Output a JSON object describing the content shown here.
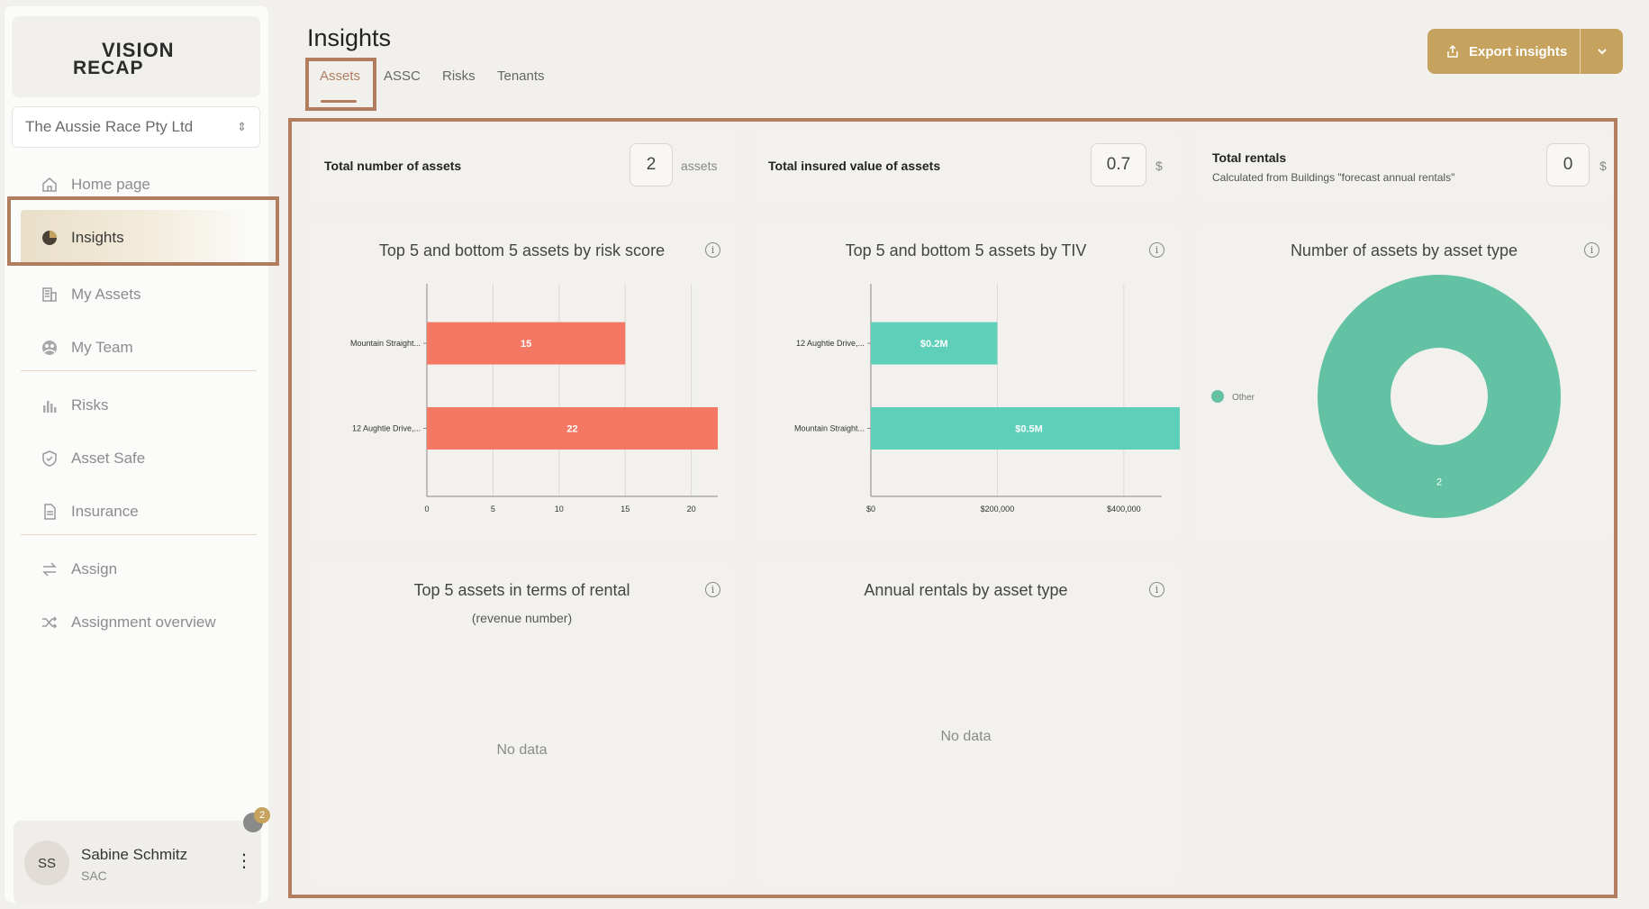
{
  "brand": {
    "line1": "VISION",
    "line2": "RECAP"
  },
  "org_select": {
    "value": "The Aussie Race Pty Ltd"
  },
  "nav": [
    {
      "label": "Home page",
      "icon": "home-icon"
    },
    {
      "label": "Insights",
      "icon": "pie-chart-icon",
      "active": true
    },
    {
      "label": "My Assets",
      "icon": "building-icon"
    },
    {
      "label": "My Team",
      "icon": "team-icon"
    },
    {
      "label": "Risks",
      "icon": "bar-chart-icon"
    },
    {
      "label": "Asset Safe",
      "icon": "shield-icon"
    },
    {
      "label": "Insurance",
      "icon": "document-icon"
    },
    {
      "label": "Assign",
      "icon": "swap-icon"
    },
    {
      "label": "Assignment overview",
      "icon": "shuffle-icon"
    }
  ],
  "user": {
    "initials": "SS",
    "name": "Sabine Schmitz",
    "role": "SAC",
    "notifications": "2"
  },
  "header": {
    "title": "Insights",
    "export_label": "Export insights"
  },
  "tabs": [
    {
      "label": "Assets",
      "active": true
    },
    {
      "label": "ASSC"
    },
    {
      "label": "Risks"
    },
    {
      "label": "Tenants"
    }
  ],
  "stats": [
    {
      "label": "Total number of assets",
      "value": "2",
      "unit": "assets"
    },
    {
      "label": "Total insured value of assets",
      "value": "0.7",
      "unit": "$"
    },
    {
      "label": "Total rentals",
      "sub": "Calculated from Buildings \"forecast annual rentals\"",
      "value": "0",
      "unit": "$"
    }
  ],
  "charts_text": {
    "risk_title": "Top 5 and bottom 5 assets by risk score",
    "tiv_title": "Top 5 and bottom 5 assets by TIV",
    "type_title": "Number of assets by asset type",
    "rental_title": "Top 5 assets in terms of rental",
    "rental_sub": "(revenue number)",
    "annual_title": "Annual rentals by asset type",
    "no_data": "No data"
  },
  "chart_data": [
    {
      "type": "bar",
      "orientation": "horizontal",
      "title": "Top 5 and bottom 5 assets by risk score",
      "categories": [
        "Mountain Straight...",
        "12 Aughtie Drive,..."
      ],
      "values": [
        15,
        22
      ],
      "data_labels": [
        "15",
        "22"
      ],
      "xlim": [
        0,
        22
      ],
      "xticks": [
        "0",
        "5",
        "10",
        "15",
        "20"
      ],
      "color": "#f47864",
      "grid": true
    },
    {
      "type": "bar",
      "orientation": "horizontal",
      "title": "Top 5 and bottom 5 assets by TIV",
      "categories": [
        "12 Aughtie Drive,...",
        "Mountain Straight..."
      ],
      "values": [
        200000,
        500000
      ],
      "data_labels": [
        "$0.2M",
        "$0.5M"
      ],
      "xlim": [
        0,
        460000
      ],
      "xticks": [
        "$0",
        "$200,000",
        "$400,000"
      ],
      "color": "#5ecfb8",
      "grid": true
    },
    {
      "type": "pie",
      "donut": true,
      "title": "Number of assets by asset type",
      "slices": [
        {
          "label": "Other",
          "value": 2
        }
      ],
      "data_labels": [
        "2"
      ],
      "legend_position": "left",
      "color": "#62c2a3"
    }
  ]
}
